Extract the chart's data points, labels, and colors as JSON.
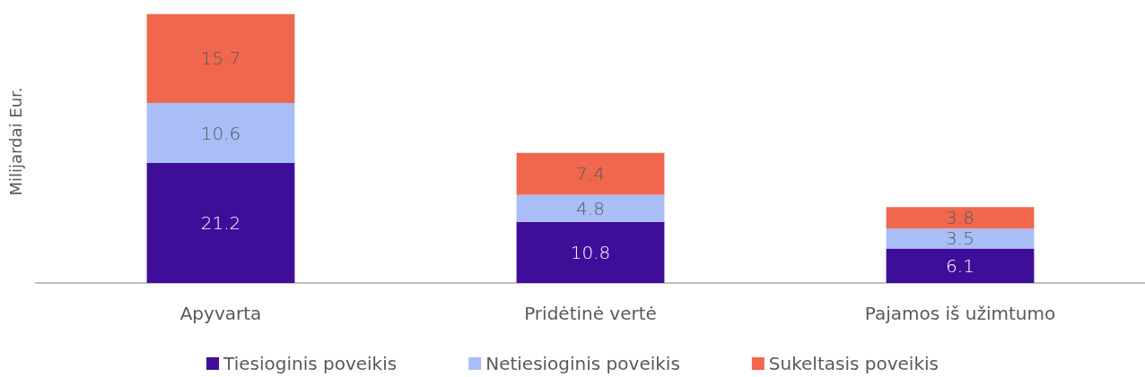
{
  "chart_data": {
    "type": "bar",
    "stacked": true,
    "data_labels": true,
    "ylabel": "Milijardai Eur.",
    "legend": "bottom",
    "grid": false,
    "tick_labels": "x",
    "categories": [
      "Apyvarta",
      "Pridėtinė vertė",
      "Pajamos iš užimtumo"
    ],
    "series": [
      {
        "name": "Tiesioginis poveikis",
        "color": "#3f0e99",
        "values": [
          21.2,
          10.8,
          6.1
        ]
      },
      {
        "name": "Netiesioginis poveikis",
        "color": "#a9bdf7",
        "values": [
          10.6,
          4.8,
          3.5
        ]
      },
      {
        "name": "Sukeltasis poveikis",
        "color": "#f0674d",
        "values": [
          15.7,
          7.4,
          3.8
        ]
      }
    ]
  }
}
